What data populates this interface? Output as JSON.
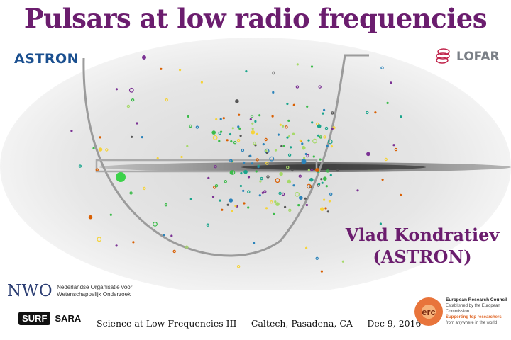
{
  "slide": {
    "title": "Pulsars at low radio frequencies",
    "author_name": "Vlad Kondratiev",
    "author_affiliation": "(ASTRON)",
    "footer": "Science at Low Frequencies III — Caltech, Pasadena, CA  —  Dec 9, 2016"
  },
  "logos": {
    "astron": "ASTRON",
    "lofar": "LOFAR",
    "nwo": "NWO",
    "nwo_line1": "Nederlandse Organisatie voor",
    "nwo_line2": "Wetenschappelijk Onderzoek",
    "surf": "SURF",
    "sara": "SARA",
    "erc": "erc",
    "erc_line1": "European Research Council",
    "erc_line2": "Established by the European Commission",
    "erc_line3": "Supporting top researchers",
    "erc_line4": "from anywhere in the world"
  },
  "colors": {
    "title": "#6b1d6e",
    "pulsar_palette": [
      "#3cbb4a",
      "#1aa58c",
      "#a6d96a",
      "#f5d33a",
      "#2b83ba",
      "#d95f02",
      "#7b3294",
      "#555555"
    ]
  },
  "sky_map": {
    "projection": "aitoff",
    "background": "all-sky radio map",
    "overlay": "LOFAR survey footprint"
  }
}
